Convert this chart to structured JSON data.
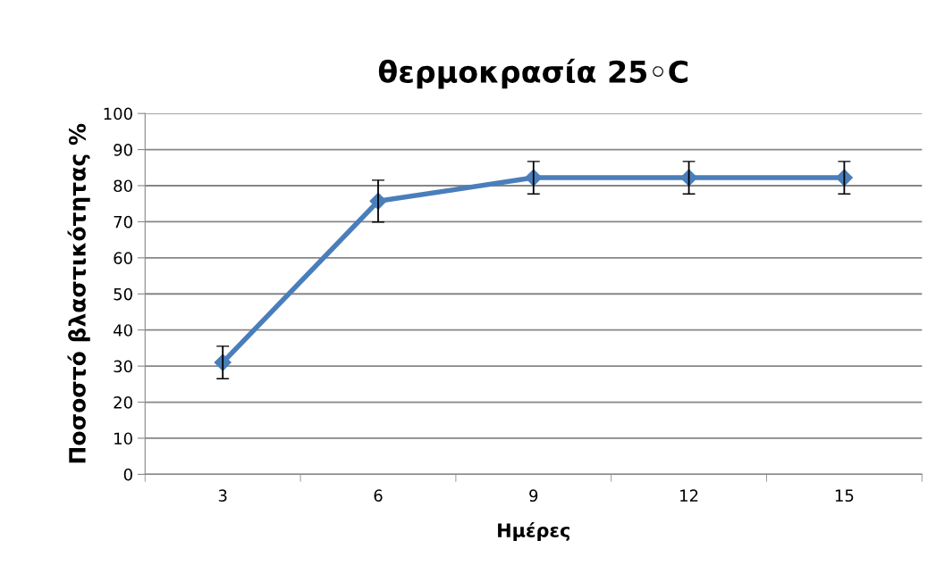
{
  "chart_data": {
    "type": "line",
    "title": "θερμοκρασία 25◦C",
    "xlabel": "Ημέρες",
    "ylabel": "Ποσοστό βλαστικότητας %",
    "categories": [
      "3",
      "6",
      "9",
      "12",
      "15"
    ],
    "series": [
      {
        "color": "#4a7ebb",
        "values": [
          31.0,
          75.7,
          82.2,
          82.2,
          82.2
        ],
        "errors": [
          4.5,
          5.8,
          4.5,
          4.5,
          4.5
        ]
      }
    ],
    "ylim": [
      0,
      100
    ],
    "yticks": [
      0,
      10,
      20,
      30,
      40,
      50,
      60,
      70,
      80,
      90,
      100
    ],
    "grid": "y",
    "marker": "diamond",
    "line_style": "solid",
    "legend": false
  }
}
